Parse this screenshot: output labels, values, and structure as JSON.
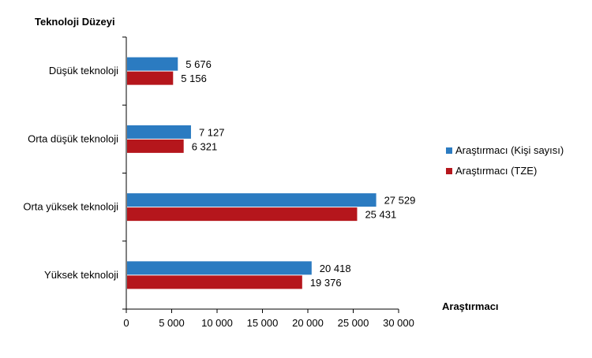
{
  "chart_data": {
    "type": "bar",
    "orientation": "horizontal",
    "title": "",
    "ylabel": "Teknoloji Düzeyi",
    "xlabel": "Araştırmacı",
    "categories": [
      "Düşük teknoloji",
      "Orta düşük teknoloji",
      "Orta yüksek teknoloji",
      "Yüksek teknoloji"
    ],
    "series": [
      {
        "name": "Araştırmacı (Kişi sayısı)",
        "color": "#2b7bc1",
        "values": [
          5676,
          7127,
          27529,
          20418
        ],
        "labels": [
          "5 676",
          "7 127",
          "27 529",
          "20 418"
        ]
      },
      {
        "name": "Araştırmacı (TZE)",
        "color": "#b5161c",
        "values": [
          5156,
          6321,
          25431,
          19376
        ],
        "labels": [
          "5 156",
          "6 321",
          "25 431",
          "19 376"
        ]
      }
    ],
    "xlim": [
      0,
      30000
    ],
    "xticks": [
      0,
      5000,
      10000,
      15000,
      20000,
      25000,
      30000
    ],
    "xtick_labels": [
      "0",
      "5 000",
      "10 000",
      "15 000",
      "20 000",
      "25 000",
      "30 000"
    ],
    "grid": false,
    "legend_position": "right"
  }
}
